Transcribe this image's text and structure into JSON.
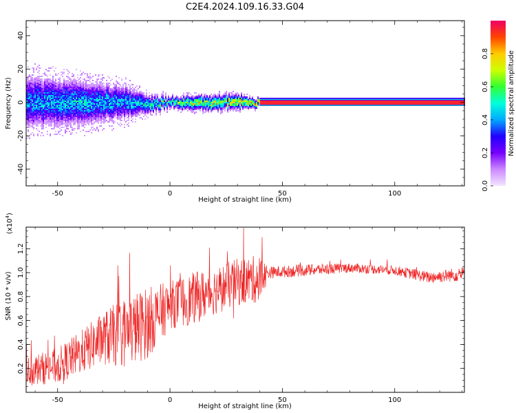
{
  "title": "C2E4.2024.109.16.33.G04",
  "colors": {
    "snr_line": "#ee2222",
    "colormap": [
      "#f2e6ff",
      "#cc88ff",
      "#7700ff",
      "#2200ff",
      "#00aaff",
      "#00ffdd",
      "#33ff33",
      "#ccff00",
      "#ffcc00",
      "#ff4400",
      "#ee0066"
    ]
  },
  "chart_data": [
    {
      "type": "heatmap",
      "xlabel": "Height of straight line (km)",
      "ylabel": "Frequency (Hz)",
      "xlim": [
        -64,
        131
      ],
      "ylim": [
        -50,
        49
      ],
      "xticks": [
        -50,
        0,
        50,
        100
      ],
      "yticks": [
        40,
        20,
        0,
        -20,
        -40
      ],
      "colorbar": {
        "label": "Normalized spectral amplitude",
        "range": [
          0,
          1
        ],
        "ticks": [
          "0.0",
          "0.2",
          "0.4",
          "0.6",
          "0.8"
        ]
      },
      "band_profile": [
        {
          "x": -64,
          "center_hz": 0,
          "halfwidth_hz": 14,
          "peak": 0.45
        },
        {
          "x": -40,
          "center_hz": 0,
          "halfwidth_hz": 12,
          "peak": 0.5
        },
        {
          "x": -20,
          "center_hz": 0,
          "halfwidth_hz": 9,
          "peak": 0.45
        },
        {
          "x": -10,
          "center_hz": -1,
          "halfwidth_hz": 5,
          "peak": 0.55
        },
        {
          "x": 0,
          "center_hz": 0,
          "halfwidth_hz": 3,
          "peak": 0.6
        },
        {
          "x": 10,
          "center_hz": 0,
          "halfwidth_hz": 4,
          "peak": 0.75
        },
        {
          "x": 30,
          "center_hz": 0,
          "halfwidth_hz": 4,
          "peak": 0.8
        },
        {
          "x": 40,
          "center_hz": 0,
          "halfwidth_hz": 2,
          "peak": 0.95
        },
        {
          "x": 131,
          "center_hz": 0,
          "halfwidth_hz": 2,
          "peak": 0.95
        }
      ]
    },
    {
      "type": "line",
      "xlabel": "Height of straight line (km)",
      "ylabel": "SNR (10 * v/v)",
      "y_multiplier": "(x10",
      "y_multiplier_exp": "4",
      "y_multiplier_close": ")",
      "xlim": [
        -64,
        131
      ],
      "ylim": [
        0.0,
        1.38
      ],
      "xticks": [
        -50,
        0,
        50,
        100
      ],
      "yticks": [
        "0.2",
        "0.4",
        "0.6",
        "0.8",
        "1.0",
        "1.2"
      ],
      "envelope": [
        {
          "x": -64,
          "mean": 0.18,
          "amp": 0.12
        },
        {
          "x": -50,
          "mean": 0.22,
          "amp": 0.15
        },
        {
          "x": -40,
          "mean": 0.33,
          "amp": 0.18
        },
        {
          "x": -30,
          "mean": 0.45,
          "amp": 0.22
        },
        {
          "x": -20,
          "mean": 0.5,
          "amp": 0.3
        },
        {
          "x": -10,
          "mean": 0.58,
          "amp": 0.3
        },
        {
          "x": 0,
          "mean": 0.73,
          "amp": 0.2
        },
        {
          "x": 10,
          "mean": 0.78,
          "amp": 0.22
        },
        {
          "x": 20,
          "mean": 0.85,
          "amp": 0.2
        },
        {
          "x": 30,
          "mean": 0.92,
          "amp": 0.2
        },
        {
          "x": 40,
          "mean": 0.95,
          "amp": 0.2
        },
        {
          "x": 44,
          "mean": 1.0,
          "amp": 0.05
        },
        {
          "x": 60,
          "mean": 1.02,
          "amp": 0.05
        },
        {
          "x": 80,
          "mean": 1.04,
          "amp": 0.04
        },
        {
          "x": 100,
          "mean": 1.02,
          "amp": 0.04
        },
        {
          "x": 115,
          "mean": 0.96,
          "amp": 0.05
        },
        {
          "x": 131,
          "mean": 0.99,
          "amp": 0.06
        }
      ]
    }
  ]
}
